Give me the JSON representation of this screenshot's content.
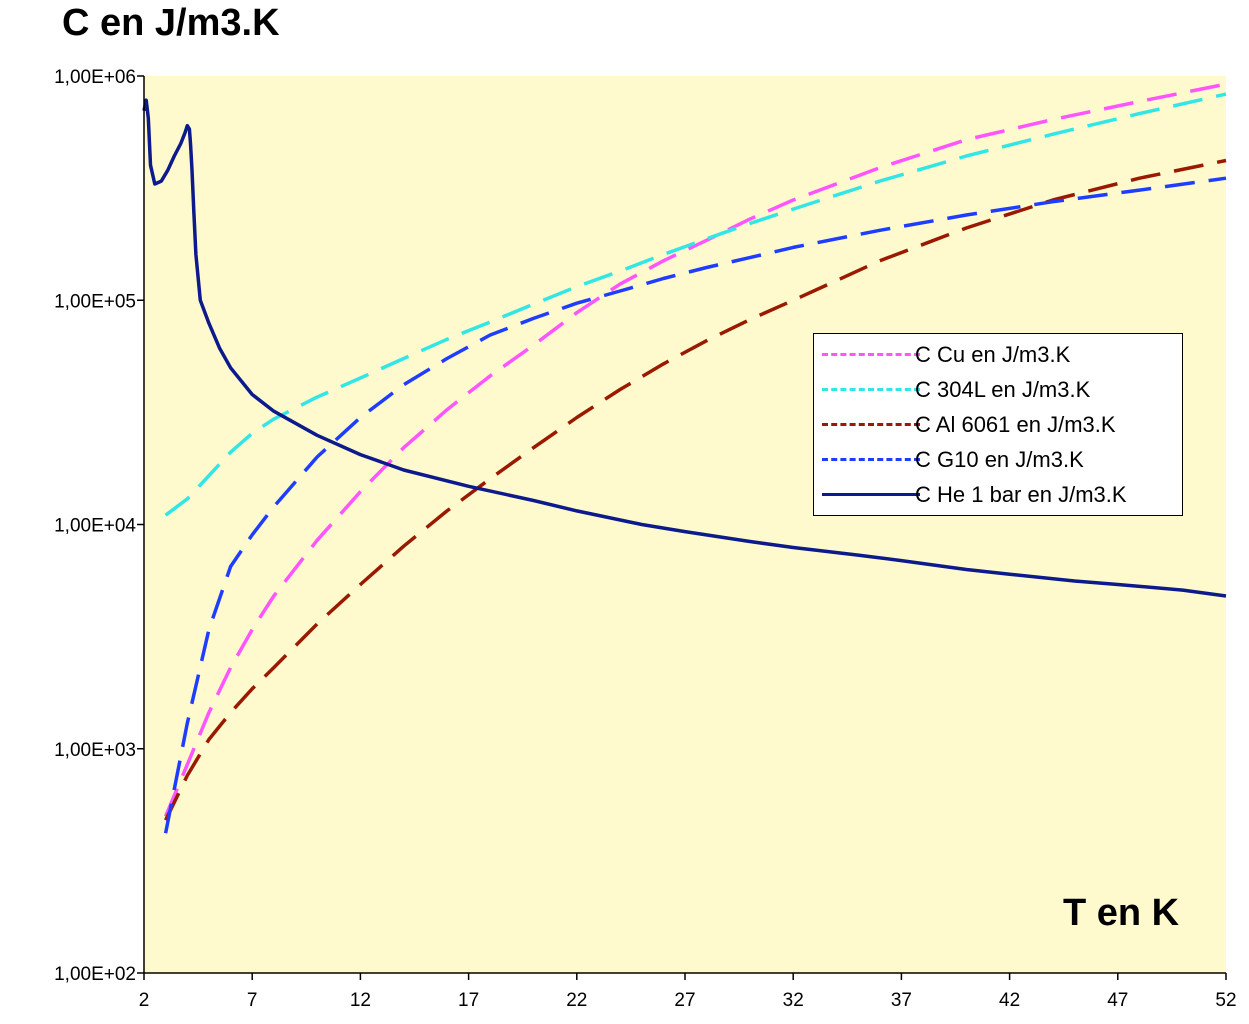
{
  "chart_data": {
    "type": "line",
    "ylabel": "C en J/m3.K",
    "xlabel": "T en K",
    "yscale": "log",
    "ylim": [
      100,
      1000000
    ],
    "xlim": [
      2,
      52
    ],
    "x_ticks": [
      "2",
      "7",
      "12",
      "17",
      "22",
      "27",
      "32",
      "37",
      "42",
      "47",
      "52"
    ],
    "y_ticks": [
      "1,00E+02",
      "1,00E+03",
      "1,00E+04",
      "1,00E+05",
      "1,00E+06"
    ],
    "background_color": "#fffacd",
    "legend_position": "right",
    "series": [
      {
        "name": "C Cu en J/m3.K",
        "color": "#ff55ff",
        "dash": true,
        "x": [
          3,
          4,
          5,
          6,
          7,
          8,
          10,
          12,
          14,
          16,
          18,
          20,
          22,
          24,
          26,
          28,
          30,
          32,
          36,
          40,
          44,
          48,
          52
        ],
        "y": [
          500,
          850,
          1450,
          2300,
          3400,
          4800,
          8500,
          14000,
          22000,
          32500,
          46000,
          63000,
          88000,
          118000,
          150000,
          185000,
          230000,
          280000,
          390000,
          520000,
          640000,
          770000,
          920000
        ]
      },
      {
        "name": "C 304L en J/m3.K",
        "color": "#33e6e6",
        "dash": true,
        "x": [
          3,
          4,
          5,
          6,
          7,
          8,
          10,
          12,
          14,
          16,
          18,
          20,
          22,
          24,
          26,
          28,
          30,
          32,
          36,
          40,
          44,
          48,
          52
        ],
        "y": [
          11000,
          13000,
          16500,
          21000,
          25500,
          29500,
          37000,
          45000,
          55000,
          67000,
          80000,
          96000,
          115000,
          135000,
          160000,
          188000,
          220000,
          255000,
          340000,
          440000,
          550000,
          680000,
          830000
        ]
      },
      {
        "name": "C Al 6061 en J/m3.K",
        "color": "#991a00",
        "dash": true,
        "x": [
          3,
          4,
          5,
          6,
          7,
          8,
          10,
          12,
          14,
          16,
          18,
          20,
          22,
          24,
          26,
          28,
          30,
          32,
          36,
          40,
          44,
          48,
          52
        ],
        "y": [
          480,
          760,
          1100,
          1450,
          1850,
          2300,
          3600,
          5400,
          8000,
          11500,
          16000,
          22000,
          30000,
          40000,
          52000,
          66000,
          82000,
          100000,
          150000,
          210000,
          280000,
          350000,
          420000
        ]
      },
      {
        "name": "C G10 en J/m3.K",
        "color": "#1f3dff",
        "dash": true,
        "x": [
          3,
          4,
          5,
          6,
          7,
          8,
          10,
          12,
          14,
          16,
          18,
          20,
          22,
          24,
          26,
          28,
          30,
          32,
          36,
          40,
          44,
          48,
          52
        ],
        "y": [
          420,
          1300,
          3400,
          6500,
          9000,
          12000,
          20000,
          30000,
          42000,
          55000,
          70000,
          83000,
          97000,
          110000,
          125000,
          140000,
          155000,
          172000,
          205000,
          240000,
          275000,
          310000,
          350000
        ]
      },
      {
        "name": "C He 1 bar en J/m3.K",
        "color": "#0c1a8c",
        "dash": false,
        "x": [
          2.0,
          2.1,
          2.2,
          2.3,
          2.5,
          2.8,
          3.1,
          3.4,
          3.7,
          3.9,
          4.0,
          4.1,
          4.15,
          4.22,
          4.3,
          4.4,
          4.6,
          5.0,
          5.5,
          6.0,
          7.0,
          8.0,
          10.0,
          12.0,
          14.0,
          17.0,
          20.0,
          22.0,
          25.0,
          27.0,
          30.0,
          32.0,
          35.0,
          37.0,
          40.0,
          42.0,
          45.0,
          47.0,
          50.0,
          52.0
        ],
        "y": [
          700000,
          780000,
          650000,
          400000,
          330000,
          340000,
          380000,
          440000,
          500000,
          560000,
          600000,
          580000,
          500000,
          380000,
          250000,
          160000,
          100000,
          79000,
          61000,
          50000,
          38000,
          32000,
          25000,
          20500,
          17500,
          14800,
          12800,
          11500,
          10000,
          9300,
          8400,
          7900,
          7300,
          6900,
          6300,
          6000,
          5600,
          5400,
          5100,
          4800
        ]
      }
    ]
  }
}
